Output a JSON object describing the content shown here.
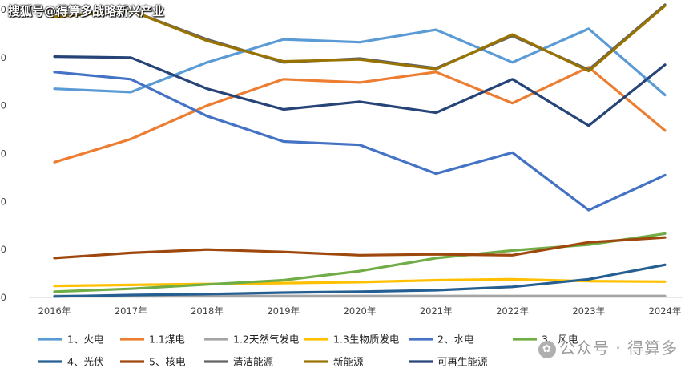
{
  "watermarks": {
    "top": "搜狐号@得算多战略新兴产业",
    "bottom": "公众号 · 得算多"
  },
  "chart_data": {
    "type": "line",
    "title": "",
    "xlabel": "",
    "ylabel": "",
    "categories": [
      "2016年",
      "2017年",
      "2018年",
      "2019年",
      "2020年",
      "2021年",
      "2022年",
      "2023年",
      "2024年"
    ],
    "ylim": [
      0,
      60
    ],
    "y_tick_labels": [
      "0",
      "0",
      "0",
      "0",
      "0",
      "0",
      "0"
    ],
    "grid": false,
    "legend_position": "bottom",
    "series": [
      {
        "name": "1、火电",
        "color": "#5b9bd5",
        "values": [
          43.5,
          42.8,
          49.0,
          53.8,
          53.2,
          55.8,
          49.0,
          56.0,
          42.2
        ]
      },
      {
        "name": "1.1煤电",
        "color": "#ed7d31",
        "values": [
          28.2,
          33.0,
          40.0,
          45.5,
          44.8,
          47.0,
          40.5,
          48.0,
          34.8
        ]
      },
      {
        "name": "1.2天然气发电",
        "color": "#a5a5a5",
        "values": [
          0.3,
          0.3,
          0.3,
          0.3,
          0.3,
          0.3,
          0.3,
          0.3,
          0.3
        ]
      },
      {
        "name": "1.3生物质发电",
        "color": "#ffc000",
        "values": [
          2.4,
          2.6,
          2.8,
          3.0,
          3.2,
          3.6,
          3.8,
          3.4,
          3.3
        ]
      },
      {
        "name": "2、水电",
        "color": "#4472c4",
        "values": [
          47.0,
          45.5,
          37.8,
          32.5,
          31.8,
          25.8,
          30.2,
          18.2,
          25.5
        ]
      },
      {
        "name": "3、风电",
        "color": "#70ad47",
        "values": [
          1.2,
          1.8,
          2.7,
          3.6,
          5.5,
          8.2,
          9.8,
          11.0,
          13.3
        ]
      },
      {
        "name": "4、光伏",
        "color": "#255e91",
        "values": [
          0.2,
          0.5,
          0.7,
          1.0,
          1.2,
          1.5,
          2.2,
          3.8,
          6.8
        ]
      },
      {
        "name": "5、核电",
        "color": "#9e480e",
        "values": [
          8.2,
          9.3,
          10.0,
          9.5,
          8.8,
          9.0,
          8.8,
          11.5,
          12.5
        ]
      },
      {
        "name": "清洁能源",
        "color": "#636363",
        "values": [
          58.5,
          59.8,
          53.8,
          49.0,
          49.8,
          47.8,
          54.5,
          47.5,
          61.0
        ]
      },
      {
        "name": "新能源",
        "color": "#997300",
        "values": [
          58.5,
          59.8,
          53.5,
          49.2,
          49.6,
          47.6,
          54.8,
          47.2,
          60.8
        ]
      },
      {
        "name": "可再生能源",
        "color": "#264478",
        "values": [
          50.2,
          50.0,
          43.5,
          39.2,
          40.8,
          38.5,
          45.5,
          35.8,
          48.5
        ]
      }
    ]
  }
}
